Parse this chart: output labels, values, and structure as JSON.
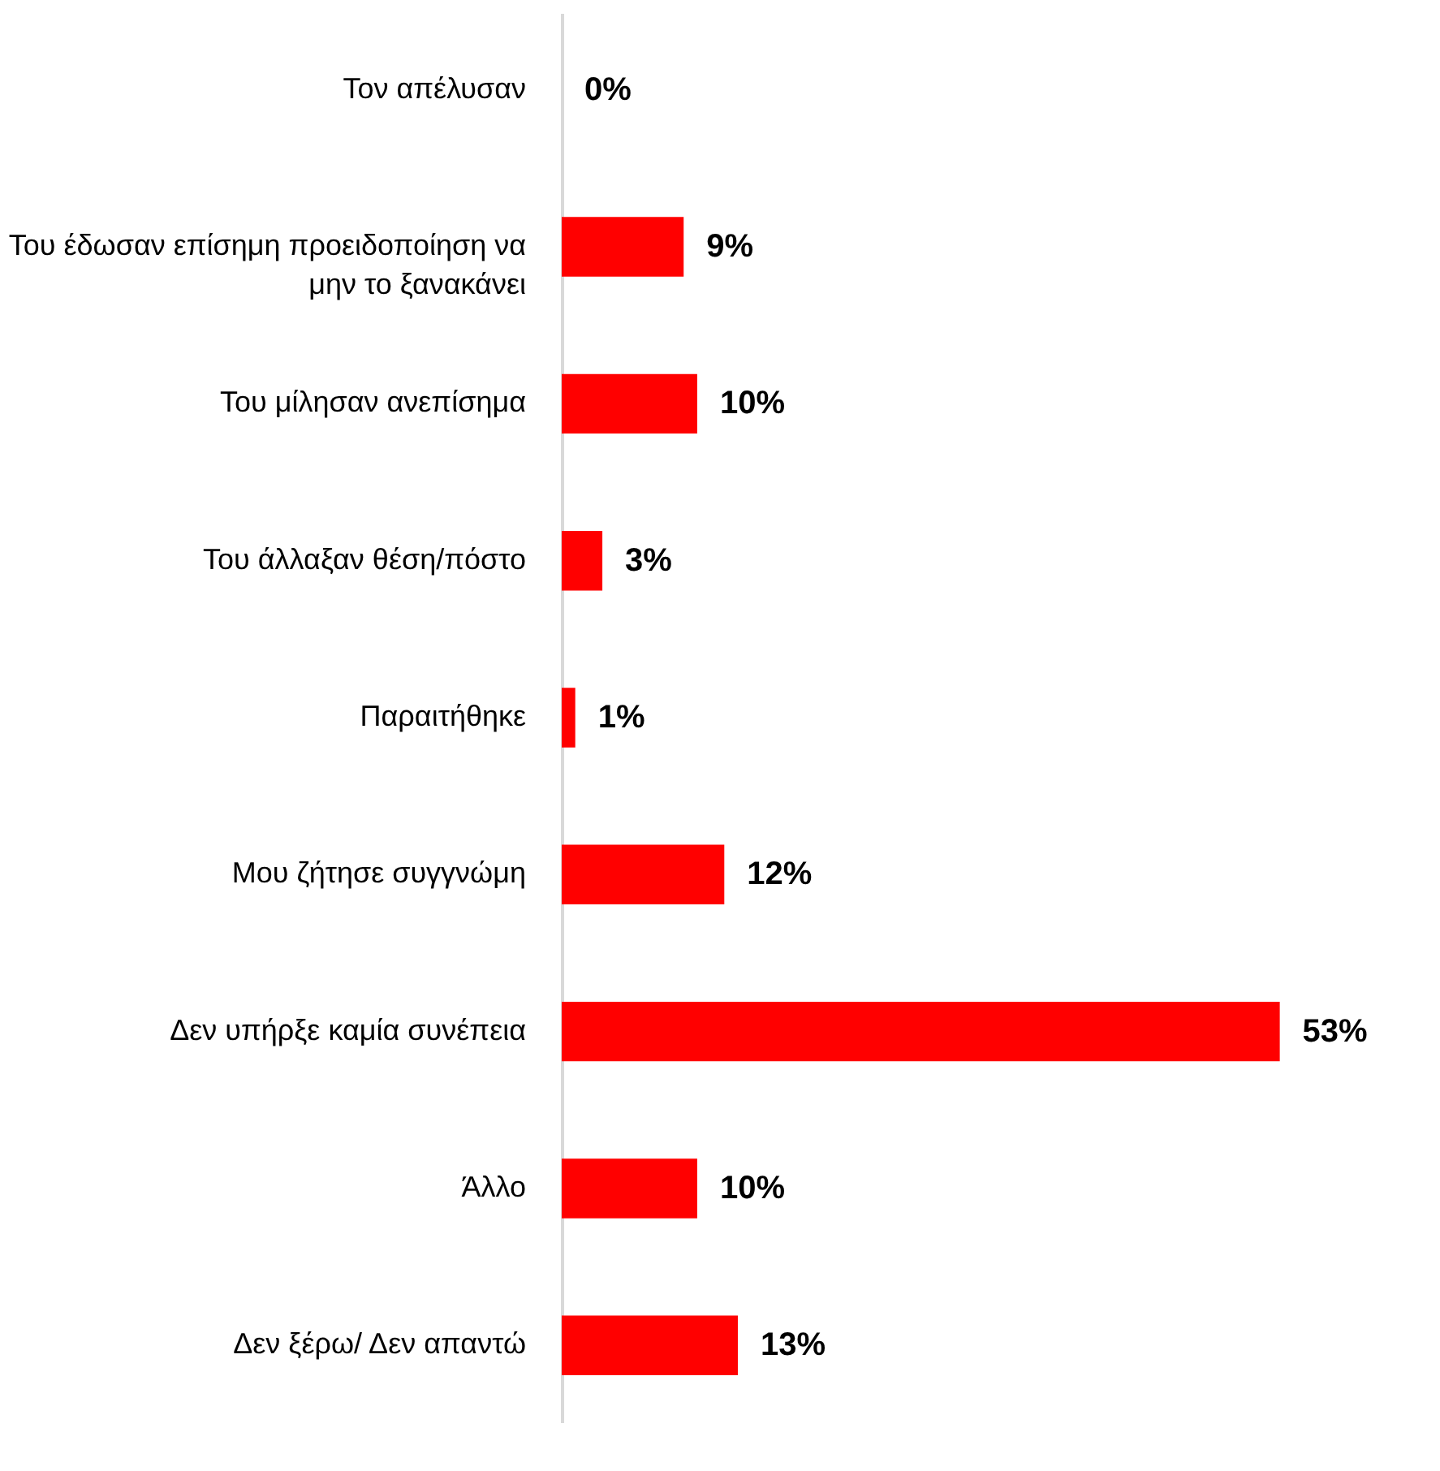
{
  "chart_data": {
    "type": "bar",
    "orientation": "horizontal",
    "categories": [
      "Τον απέλυσαν",
      "Του έδωσαν επίσημη προειδοποίηση να μην το ξανακάνει",
      "Του μίλησαν ανεπίσημα",
      "Του άλλαξαν θέση/πόστο",
      "Παραιτήθηκε",
      "Μου ζήτησε συγγνώμη",
      "Δεν υπήρξε καμία συνέπεια",
      "Άλλο",
      "Δεν ξέρω/ Δεν απαντώ"
    ],
    "values": [
      0,
      9,
      10,
      3,
      1,
      12,
      53,
      10,
      13
    ],
    "value_labels": [
      "0%",
      "9%",
      "10%",
      "3%",
      "1%",
      "12%",
      "53%",
      "10%",
      "13%"
    ],
    "color": "#ff0000",
    "grid": false,
    "tick_labels": false
  }
}
